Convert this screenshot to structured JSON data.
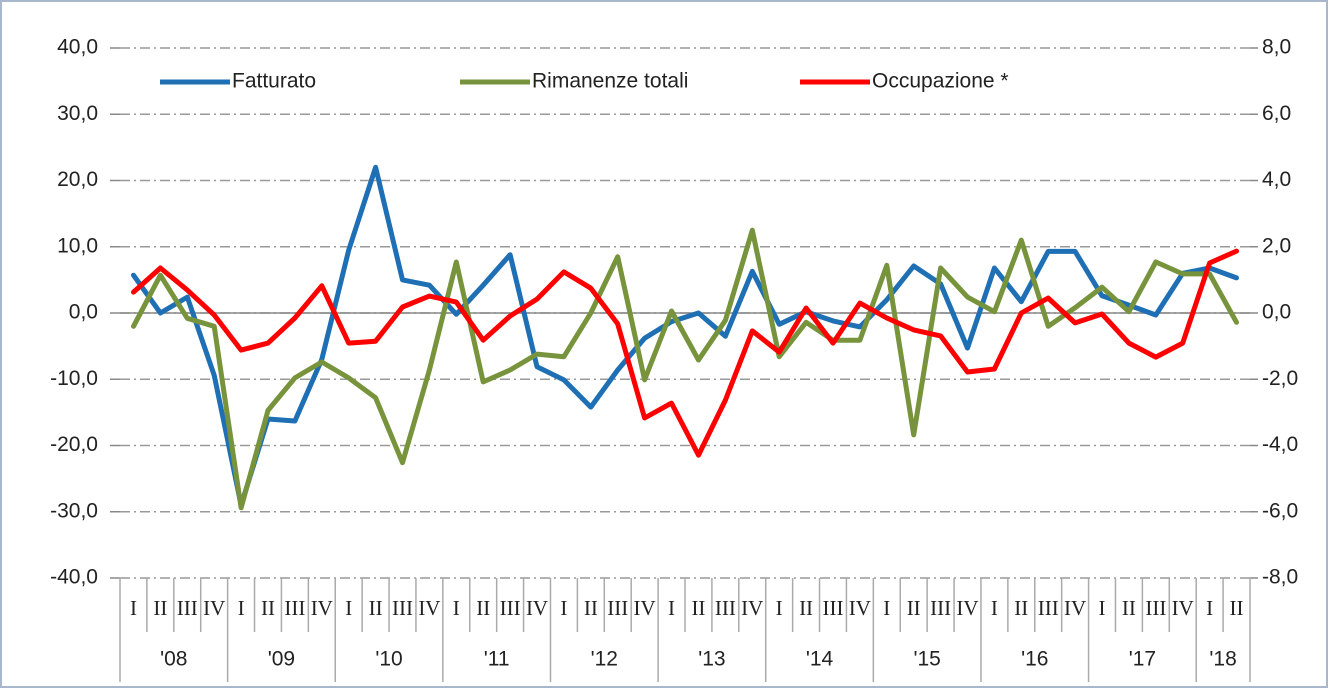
{
  "chart_data": {
    "type": "line",
    "categories": [
      "I",
      "II",
      "III",
      "IV",
      "I",
      "II",
      "III",
      "IV",
      "I",
      "II",
      "III",
      "IV",
      "I",
      "II",
      "III",
      "IV",
      "I",
      "II",
      "III",
      "IV",
      "I",
      "II",
      "III",
      "IV",
      "I",
      "II",
      "III",
      "IV",
      "I",
      "II",
      "III",
      "IV",
      "I",
      "II",
      "III",
      "IV",
      "I",
      "II",
      "III",
      "IV",
      "I",
      "II"
    ],
    "years": [
      "'08",
      "'09",
      "'10",
      "'11",
      "'12",
      "'13",
      "'14",
      "'15",
      "'16",
      "'17",
      "'18"
    ],
    "series": [
      {
        "name": "Fatturato",
        "color": "#1f6fb5",
        "values": [
          5.7,
          0,
          2.4,
          -9.4,
          -29,
          -16,
          -16.3,
          -7,
          9.5,
          22,
          5,
          4.2,
          -0.2,
          4.2,
          8.8,
          -8.1,
          -10.1,
          -14.2,
          -8.6,
          -3.8,
          -1.3,
          0,
          -3.5,
          6.3,
          -1.7,
          0.2,
          -1.2,
          -2.1,
          2,
          7.1,
          4.4,
          -5.3,
          6.8,
          1.7,
          9.3,
          9.3,
          2.6,
          1.2,
          -0.3,
          6,
          6.8,
          5.3
        ]
      },
      {
        "name": "Rimanenze totali",
        "color": "#77933c",
        "values": [
          -2,
          5.7,
          -0.8,
          -2,
          -29.4,
          -14.7,
          -9.8,
          -7.4,
          -9.8,
          -12.8,
          -22.6,
          -8.6,
          7.7,
          -10.4,
          -8.6,
          -6.2,
          -6.6,
          0,
          8.5,
          -10.1,
          0.3,
          -7.1,
          -1.1,
          12.5,
          -6.6,
          -1.4,
          -4.1,
          -4.1,
          7.2,
          -18.4,
          6.8,
          2.4,
          0.2,
          11,
          -2,
          0.8,
          3.9,
          0.2,
          7.7,
          5.9,
          5.9,
          -1.4
        ]
      },
      {
        "name": "Occupazione *",
        "color": "#ff0000",
        "axis": "y2",
        "values": [
          0.63,
          1.36,
          0.69,
          -0.06,
          -1.12,
          -0.91,
          -0.15,
          0.82,
          -0.91,
          -0.85,
          0.18,
          0.51,
          0.33,
          -0.82,
          -0.09,
          0.42,
          1.24,
          0.75,
          -0.33,
          -3.17,
          -2.72,
          -4.29,
          -2.63,
          -0.54,
          -1.18,
          0.15,
          -0.91,
          0.3,
          -0.15,
          -0.51,
          -0.69,
          -1.78,
          -1.69,
          0,
          0.45,
          -0.3,
          -0.03,
          -0.91,
          -1.33,
          -0.91,
          1.51,
          1.87
        ]
      }
    ],
    "ylim": [
      -40,
      40
    ],
    "yticks": [
      {
        "value": -40,
        "label": "-40,0"
      },
      {
        "value": -30,
        "label": "-30,0"
      },
      {
        "value": -20,
        "label": "-20,0"
      },
      {
        "value": -10,
        "label": "-10,0"
      },
      {
        "value": 0,
        "label": "0,0"
      },
      {
        "value": 10,
        "label": "10,0"
      },
      {
        "value": 20,
        "label": "20,0"
      },
      {
        "value": 30,
        "label": "30,0"
      },
      {
        "value": 40,
        "label": "40,0"
      }
    ],
    "y2lim": [
      -8,
      8
    ],
    "y2ticks": [
      {
        "value": -8,
        "label": "-8,0"
      },
      {
        "value": -6,
        "label": "-6,0"
      },
      {
        "value": -4,
        "label": "-4,0"
      },
      {
        "value": -2,
        "label": "-2,0"
      },
      {
        "value": 0,
        "label": "0,0"
      },
      {
        "value": 2,
        "label": "2,0"
      },
      {
        "value": 4,
        "label": "4,0"
      },
      {
        "value": 6,
        "label": "6,0"
      },
      {
        "value": 8,
        "label": "8,0"
      }
    ],
    "grid": true,
    "legend": "top-left"
  }
}
